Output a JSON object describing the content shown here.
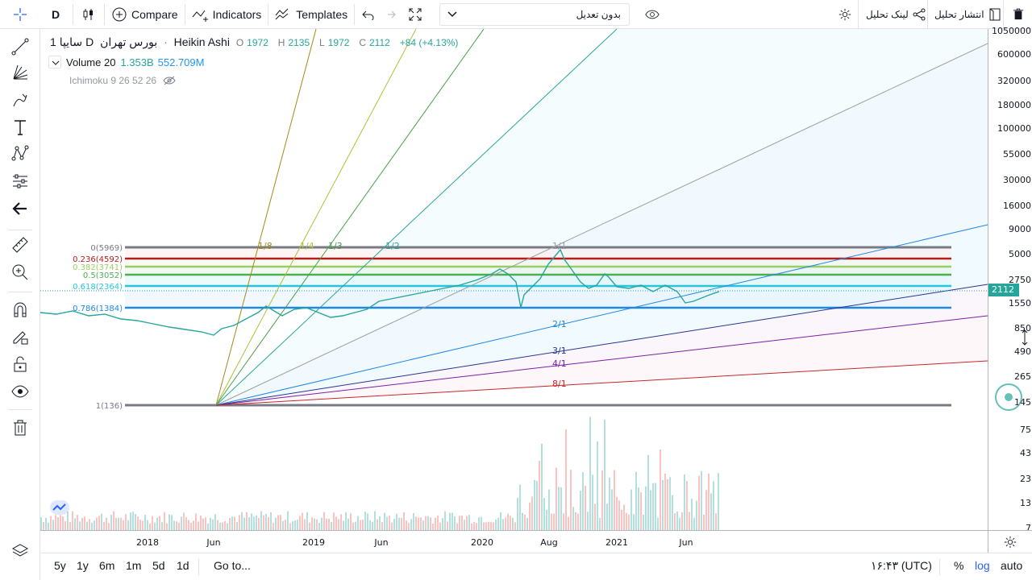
{
  "toolbar": {
    "symbol_initial": "D",
    "compare_label": "Compare",
    "indicators_label": "Indicators",
    "templates_label": "Templates",
    "adjust_select_value": "بدون تعدیل",
    "publish_label": "انتشار تحلیل",
    "link_label": "لینک تحلیل"
  },
  "legend": {
    "symbol": "سایپا",
    "interval": "1D",
    "exchange": "بورس تهران",
    "chart_style": "Heikin Ashi",
    "o_label": "O",
    "o_value": "1972",
    "h_label": "H",
    "h_value": "2135",
    "l_label": "L",
    "l_value": "1972",
    "c_label": "C",
    "c_value": "2112",
    "change": "+84 (+4.13%)",
    "volume_label": "Volume 20",
    "volume_value1": "1.353B",
    "volume_value2": "552.709M",
    "ichimoku_label": "Ichimoku 9 26 52 26"
  },
  "fib_levels": [
    {
      "label": "0(5969)",
      "color": "#787b86"
    },
    {
      "label": "0.236(4592)",
      "color": "#b71c1c"
    },
    {
      "label": "0.382(3741)",
      "color": "#9ccc65"
    },
    {
      "label": "0.5(3052)",
      "color": "#4caf50"
    },
    {
      "label": "0.618(2364)",
      "color": "#26c6da"
    },
    {
      "label": "0.786(1384)",
      "color": "#1e88e5"
    },
    {
      "label": "1(136)",
      "color": "#787b86"
    }
  ],
  "fan_labels_top": [
    "1/8",
    "1/4",
    "1/3",
    "1/2",
    "1/1"
  ],
  "fan_labels_bottom": [
    "2/1",
    "3/1",
    "4/1",
    "8/1"
  ],
  "price_axis": {
    "ticks": [
      "1050000",
      "600000",
      "320000",
      "180000",
      "100000",
      "55000",
      "30000",
      "16000",
      "9000",
      "5000",
      "2750",
      "1550",
      "850",
      "490",
      "265",
      "145",
      "75",
      "43",
      "23",
      "13",
      "7"
    ],
    "last_price": "2112"
  },
  "time_axis": {
    "ticks": [
      "2018",
      "Jun",
      "2019",
      "Jun",
      "2020",
      "Aug",
      "2021",
      "Jun"
    ]
  },
  "bottom": {
    "ranges": [
      "5y",
      "1y",
      "6m",
      "1m",
      "5d",
      "1d"
    ],
    "goto_label": "Go to...",
    "time": "۱۶:۴۳ (UTC)",
    "percent_label": "%",
    "log_label": "log",
    "auto_label": "auto"
  },
  "colors": {
    "accent": "#2962ff",
    "up": "#26a69a",
    "down": "#ef5350",
    "last_price_bg": "#26a69a"
  }
}
